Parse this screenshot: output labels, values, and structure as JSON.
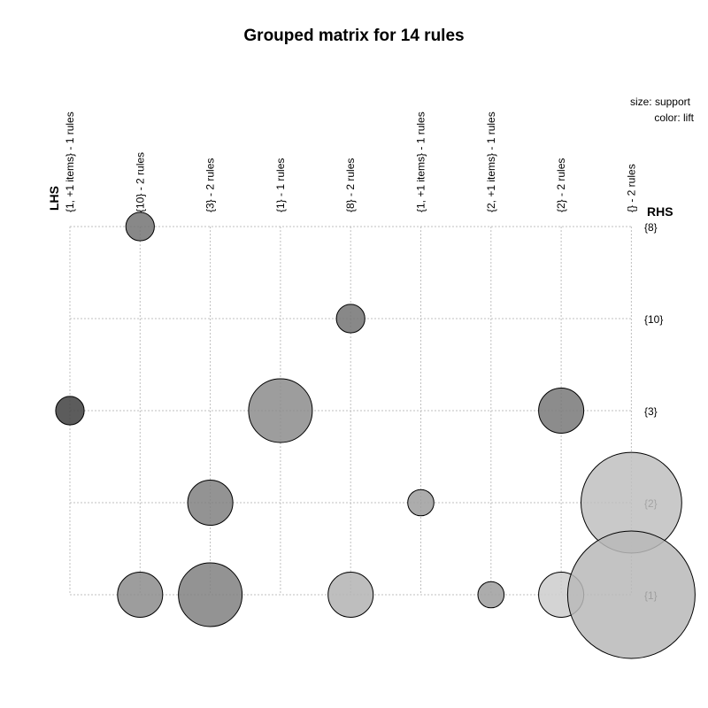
{
  "chart_data": {
    "type": "scatter",
    "title": "Grouped matrix for 14 rules",
    "legend": {
      "size": "size: support",
      "color": "color: lift",
      "placement": "top-right"
    },
    "xlabel": "LHS",
    "ylabel": "RHS",
    "lhs_groups": [
      "{1, +1 items} - 1 rules",
      "{10} - 2 rules",
      "{3} - 2 rules",
      "{1} - 1 rules",
      "{8} - 2 rules",
      "{1, +1 items} - 1 rules",
      "{2, +1 items} - 1 rules",
      "{2} - 2 rules",
      "{} - 2 rules"
    ],
    "rhs_items": [
      "{8}",
      "{10}",
      "{3}",
      "{2}",
      "{1}"
    ],
    "grid": true,
    "points": [
      {
        "lhs": 1,
        "rhs": 0,
        "support": 0.2,
        "gray": 0.45
      },
      {
        "lhs": 4,
        "rhs": 1,
        "support": 0.2,
        "gray": 0.45
      },
      {
        "lhs": 0,
        "rhs": 2,
        "support": 0.2,
        "gray": 0.25
      },
      {
        "lhs": 3,
        "rhs": 2,
        "support": 1.0,
        "gray": 0.55
      },
      {
        "lhs": 7,
        "rhs": 2,
        "support": 0.5,
        "gray": 0.47
      },
      {
        "lhs": 2,
        "rhs": 3,
        "support": 0.5,
        "gray": 0.5
      },
      {
        "lhs": 5,
        "rhs": 3,
        "support": 0.17,
        "gray": 0.62
      },
      {
        "lhs": 8,
        "rhs": 3,
        "support": 2.5,
        "gray": 0.75
      },
      {
        "lhs": 1,
        "rhs": 4,
        "support": 0.5,
        "gray": 0.55
      },
      {
        "lhs": 2,
        "rhs": 4,
        "support": 1.0,
        "gray": 0.5
      },
      {
        "lhs": 4,
        "rhs": 4,
        "support": 0.5,
        "gray": 0.7
      },
      {
        "lhs": 6,
        "rhs": 4,
        "support": 0.17,
        "gray": 0.62
      },
      {
        "lhs": 7,
        "rhs": 4,
        "support": 0.5,
        "gray": 0.8
      },
      {
        "lhs": 8,
        "rhs": 4,
        "support": 4.0,
        "gray": 0.72
      }
    ]
  }
}
